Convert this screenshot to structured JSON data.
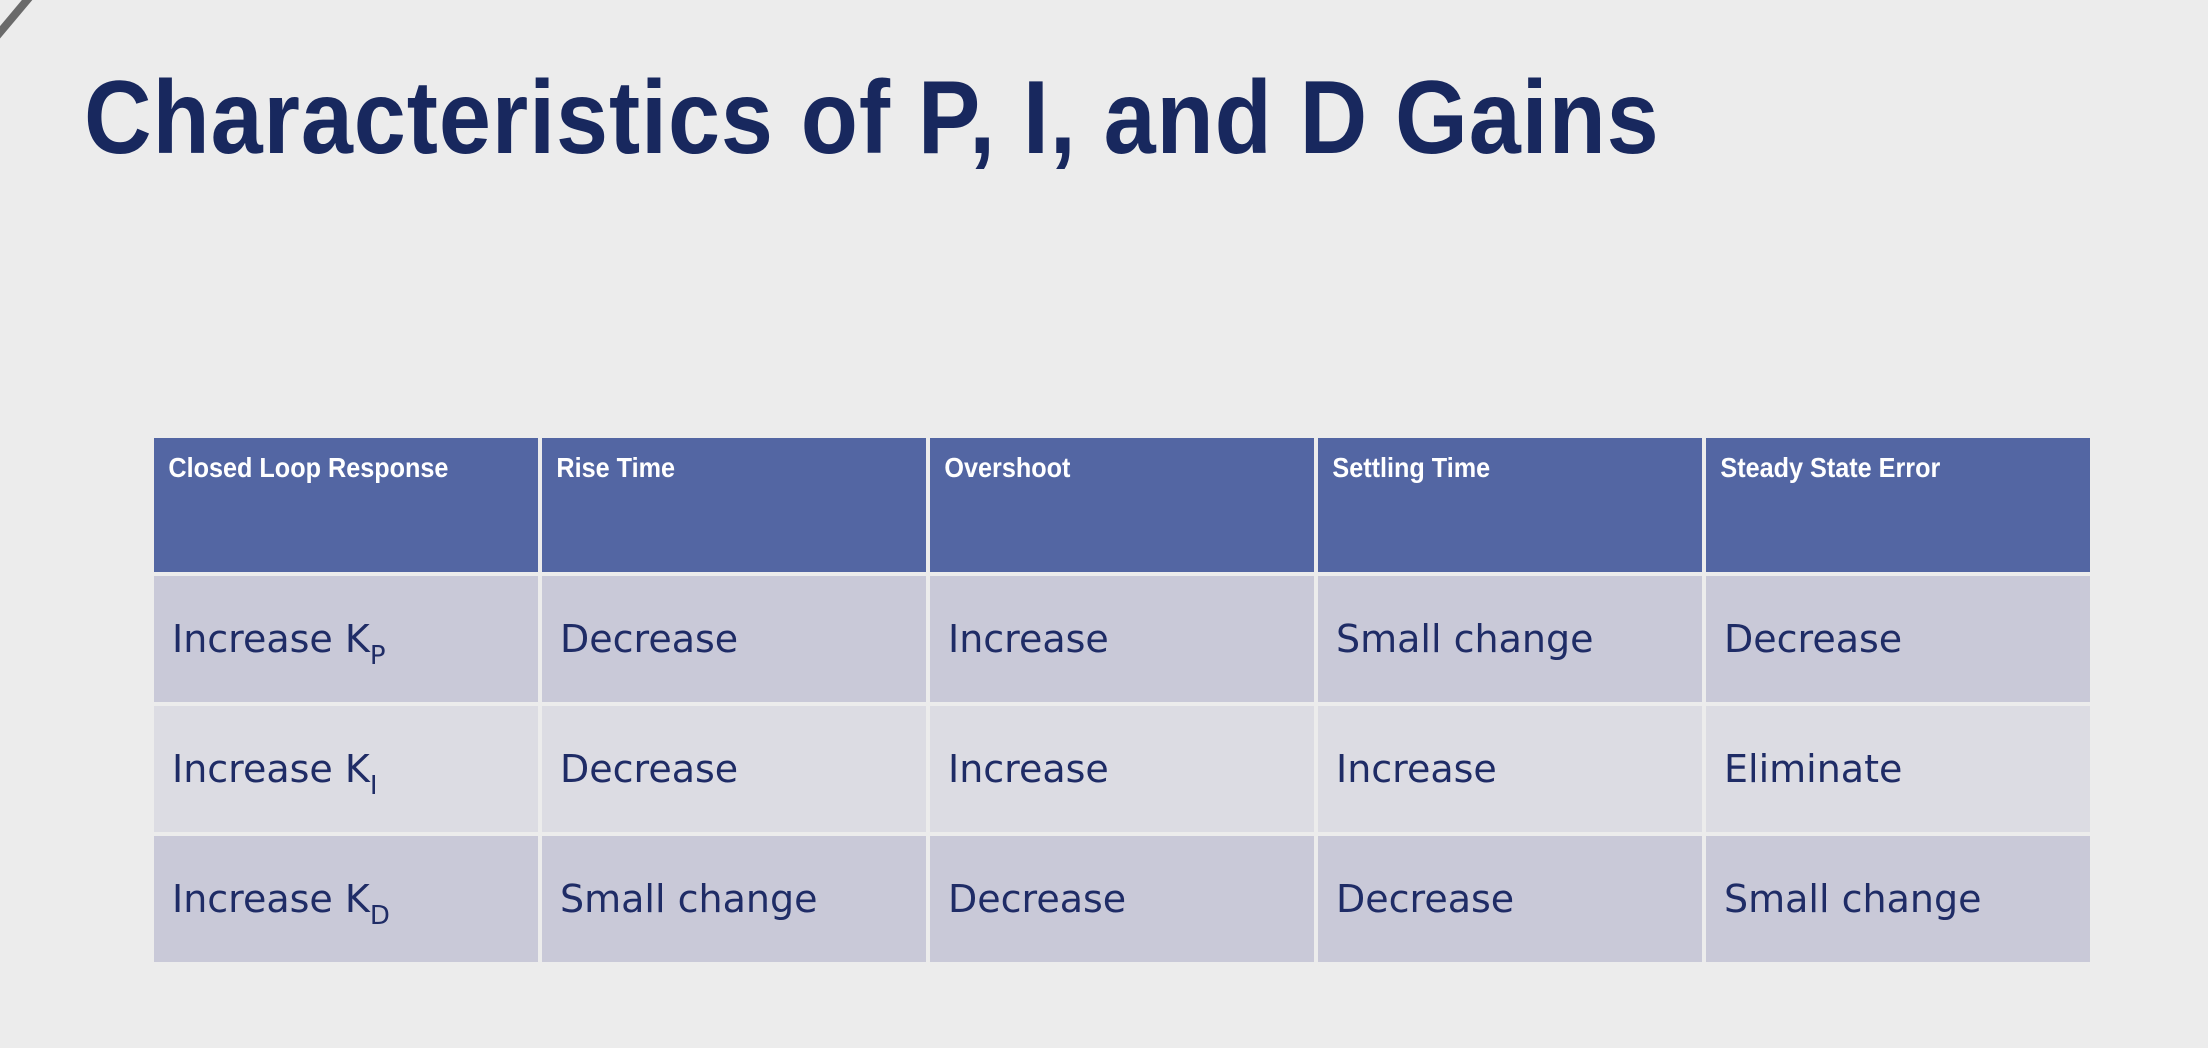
{
  "slide": {
    "title": "Characteristics of P, I, and D Gains"
  },
  "table": {
    "headers": [
      "Closed Loop Response",
      "Rise Time",
      "Overshoot",
      "Settling Time",
      "Steady State Error"
    ],
    "rows": [
      {
        "response": {
          "prefix": "Increase K",
          "subscript": "P"
        },
        "rise_time": "Decrease",
        "overshoot": "Increase",
        "settling_time": "Small change",
        "steady_state_error": "Decrease"
      },
      {
        "response": {
          "prefix": "Increase K",
          "subscript": "I"
        },
        "rise_time": "Decrease",
        "overshoot": "Increase",
        "settling_time": "Increase",
        "steady_state_error": "Eliminate"
      },
      {
        "response": {
          "prefix": "Increase K",
          "subscript": "D"
        },
        "rise_time": "Small change",
        "overshoot": "Decrease",
        "settling_time": "Decrease",
        "steady_state_error": "Small change"
      }
    ]
  },
  "colors": {
    "title": "#18285e",
    "header_bg": "#5366a3",
    "header_text": "#ffffff",
    "row_dark_bg": "#c9c9d8",
    "row_light_bg": "#dcdce3",
    "cell_text": "#1f2c66",
    "background": "#ececec"
  }
}
